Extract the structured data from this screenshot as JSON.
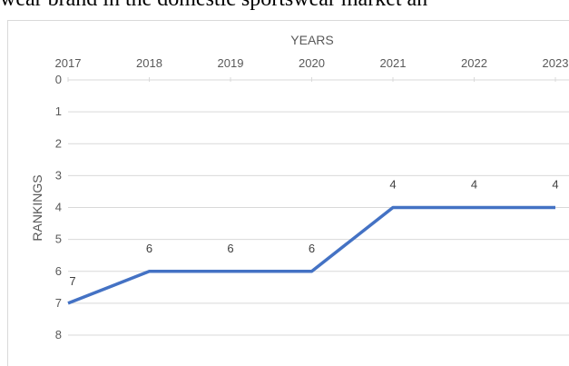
{
  "caption": "wear brand in the domestic sportswear market an",
  "chart_data": {
    "type": "line",
    "x_axis_position": "top",
    "y_axis_reversed": true,
    "categories": [
      "2017",
      "2018",
      "2019",
      "2020",
      "2021",
      "2022",
      "2023"
    ],
    "series": [
      {
        "values": [
          7,
          6,
          6,
          6,
          4,
          4,
          4
        ],
        "color": "#4472c4"
      }
    ],
    "data_labels": [
      "7",
      "6",
      "6",
      "6",
      "4",
      "4",
      "4"
    ],
    "xlabel": "YEARS",
    "ylabel": "RANKINGS",
    "ylim": [
      0,
      8
    ],
    "yticks": [
      "0",
      "1",
      "2",
      "3",
      "4",
      "5",
      "6",
      "7",
      "8"
    ],
    "grid": true
  }
}
